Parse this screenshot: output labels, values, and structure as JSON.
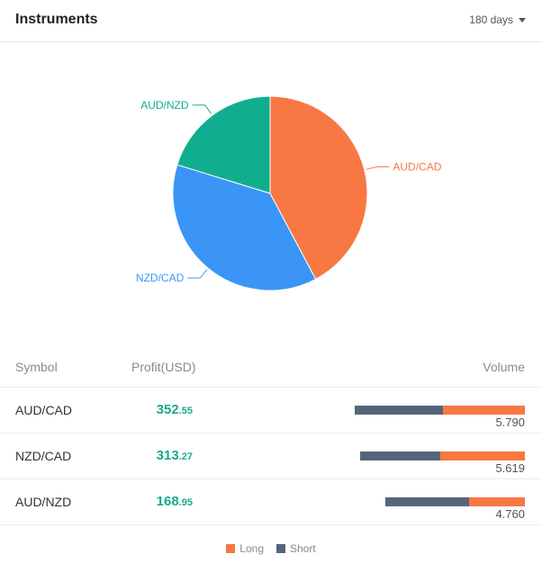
{
  "header": {
    "title": "Instruments",
    "period": "180 days",
    "period_icon": "caret-down-icon"
  },
  "chart_data": {
    "type": "pie",
    "slices": [
      {
        "label": "AUD/CAD",
        "value": 352.55,
        "color": "#f77843"
      },
      {
        "label": "NZD/CAD",
        "value": 313.27,
        "color": "#3a95f7"
      },
      {
        "label": "AUD/NZD",
        "value": 168.95,
        "color": "#10ae8e"
      }
    ]
  },
  "table": {
    "headers": {
      "symbol": "Symbol",
      "profit": "Profit(USD)",
      "volume": "Volume"
    },
    "rows": [
      {
        "symbol": "AUD/CAD",
        "profit_int": "352",
        "profit_dec": ".55",
        "volume": "5.790",
        "short_fraction": 0.52,
        "long_fraction": 0.48
      },
      {
        "symbol": "NZD/CAD",
        "profit_int": "313",
        "profit_dec": ".27",
        "volume": "5.619",
        "short_fraction": 0.49,
        "long_fraction": 0.51
      },
      {
        "symbol": "AUD/NZD",
        "profit_int": "168",
        "profit_dec": ".95",
        "volume": "4.760",
        "short_fraction": 0.6,
        "long_fraction": 0.4
      }
    ]
  },
  "legend": {
    "long_label": "Long",
    "short_label": "Short",
    "long_color": "#f77843",
    "short_color": "#566479"
  }
}
